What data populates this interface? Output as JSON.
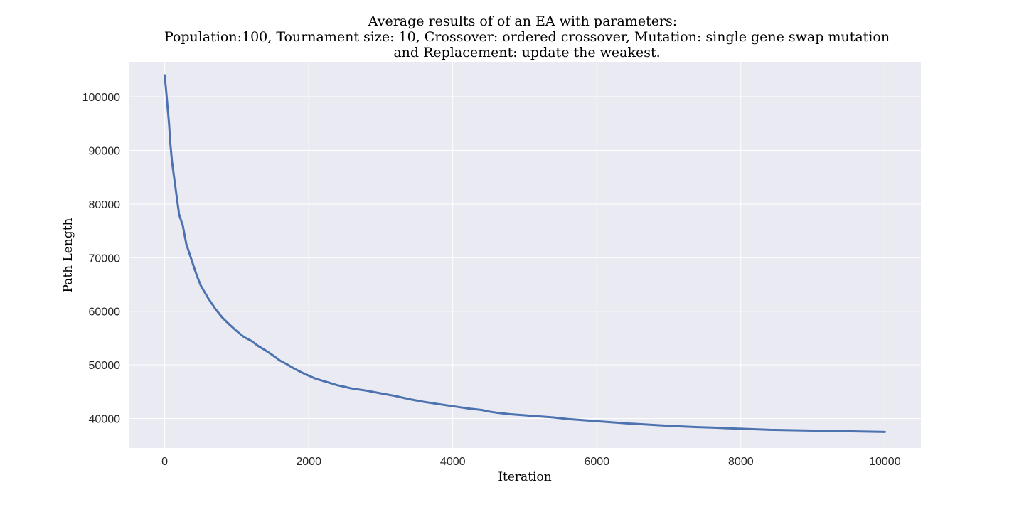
{
  "chart_data": {
    "type": "line",
    "title_lines": [
      "Average results of of an EA with parameters:",
      "Population:100, Tournament size: 10, Crossover: ordered crossover, Mutation: single gene swap mutation",
      "and Replacement: update the weakest."
    ],
    "xlabel": "Iteration",
    "ylabel": "Path Length",
    "xlim": [
      -500,
      10500
    ],
    "ylim": [
      34500,
      106500
    ],
    "x_ticks": [
      0,
      2000,
      4000,
      6000,
      8000,
      10000
    ],
    "x_tick_labels": [
      "0",
      "2000",
      "4000",
      "6000",
      "8000",
      "10000"
    ],
    "y_ticks": [
      40000,
      50000,
      60000,
      70000,
      80000,
      90000,
      100000
    ],
    "y_tick_labels": [
      "40000",
      "50000",
      "60000",
      "70000",
      "80000",
      "90000",
      "100000"
    ],
    "grid": true,
    "background_color": "#eaeaf2",
    "series": [
      {
        "color": "#4c72b0",
        "x": [
          0,
          20,
          40,
          60,
          80,
          100,
          120,
          150,
          180,
          200,
          250,
          300,
          350,
          400,
          450,
          500,
          600,
          700,
          800,
          900,
          1000,
          1100,
          1200,
          1300,
          1400,
          1500,
          1600,
          1700,
          1800,
          1900,
          2000,
          2100,
          2200,
          2300,
          2400,
          2500,
          2600,
          2800,
          3000,
          3200,
          3400,
          3600,
          3800,
          4000,
          4200,
          4400,
          4500,
          4600,
          4800,
          5000,
          5200,
          5400,
          5600,
          5800,
          6000,
          6200,
          6400,
          6600,
          6800,
          7000,
          7200,
          7400,
          7600,
          7800,
          8000,
          8200,
          8400,
          8600,
          8800,
          9000,
          9200,
          9400,
          9600,
          9800,
          10000
        ],
        "y": [
          104000,
          101000,
          98000,
          95000,
          91000,
          88000,
          86000,
          83000,
          80000,
          78000,
          76000,
          72500,
          70500,
          68500,
          66500,
          64800,
          62500,
          60500,
          58800,
          57500,
          56300,
          55200,
          54500,
          53500,
          52700,
          51800,
          50800,
          50100,
          49300,
          48600,
          48000,
          47400,
          47000,
          46600,
          46200,
          45900,
          45600,
          45200,
          44700,
          44200,
          43600,
          43100,
          42700,
          42300,
          41900,
          41600,
          41300,
          41100,
          40800,
          40600,
          40400,
          40200,
          39900,
          39700,
          39500,
          39300,
          39100,
          38950,
          38800,
          38650,
          38500,
          38400,
          38300,
          38200,
          38100,
          38000,
          37900,
          37850,
          37800,
          37750,
          37700,
          37650,
          37600,
          37550,
          37500
        ]
      }
    ]
  }
}
